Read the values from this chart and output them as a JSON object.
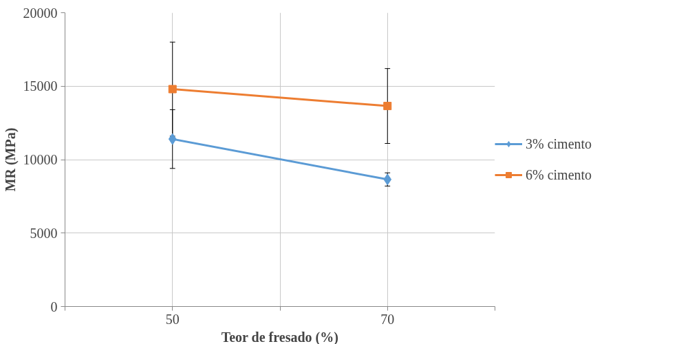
{
  "chart_data": {
    "type": "line",
    "xlabel": "Teor de fresado (%)",
    "ylabel": "MR (MPa)",
    "x": [
      50,
      70
    ],
    "series": [
      {
        "name": "3% cimento",
        "color": "#5b9bd5",
        "values": [
          11400,
          8650
        ],
        "errors": [
          2000,
          450
        ],
        "marker": "diamond"
      },
      {
        "name": "6% cimento",
        "color": "#ed7d31",
        "values": [
          14800,
          13650
        ],
        "errors": [
          3200,
          2550
        ],
        "marker": "square"
      }
    ],
    "xlim": [
      40,
      80
    ],
    "xticks": [
      {
        "value": 40,
        "label": null
      },
      50,
      {
        "value": 60,
        "label": null
      },
      70,
      {
        "value": 80,
        "label": null
      }
    ],
    "ylim": [
      0,
      20000
    ],
    "yticks": [
      0,
      5000,
      10000,
      15000,
      20000
    ],
    "grid": true,
    "legend": "right",
    "line_style": "solid"
  }
}
